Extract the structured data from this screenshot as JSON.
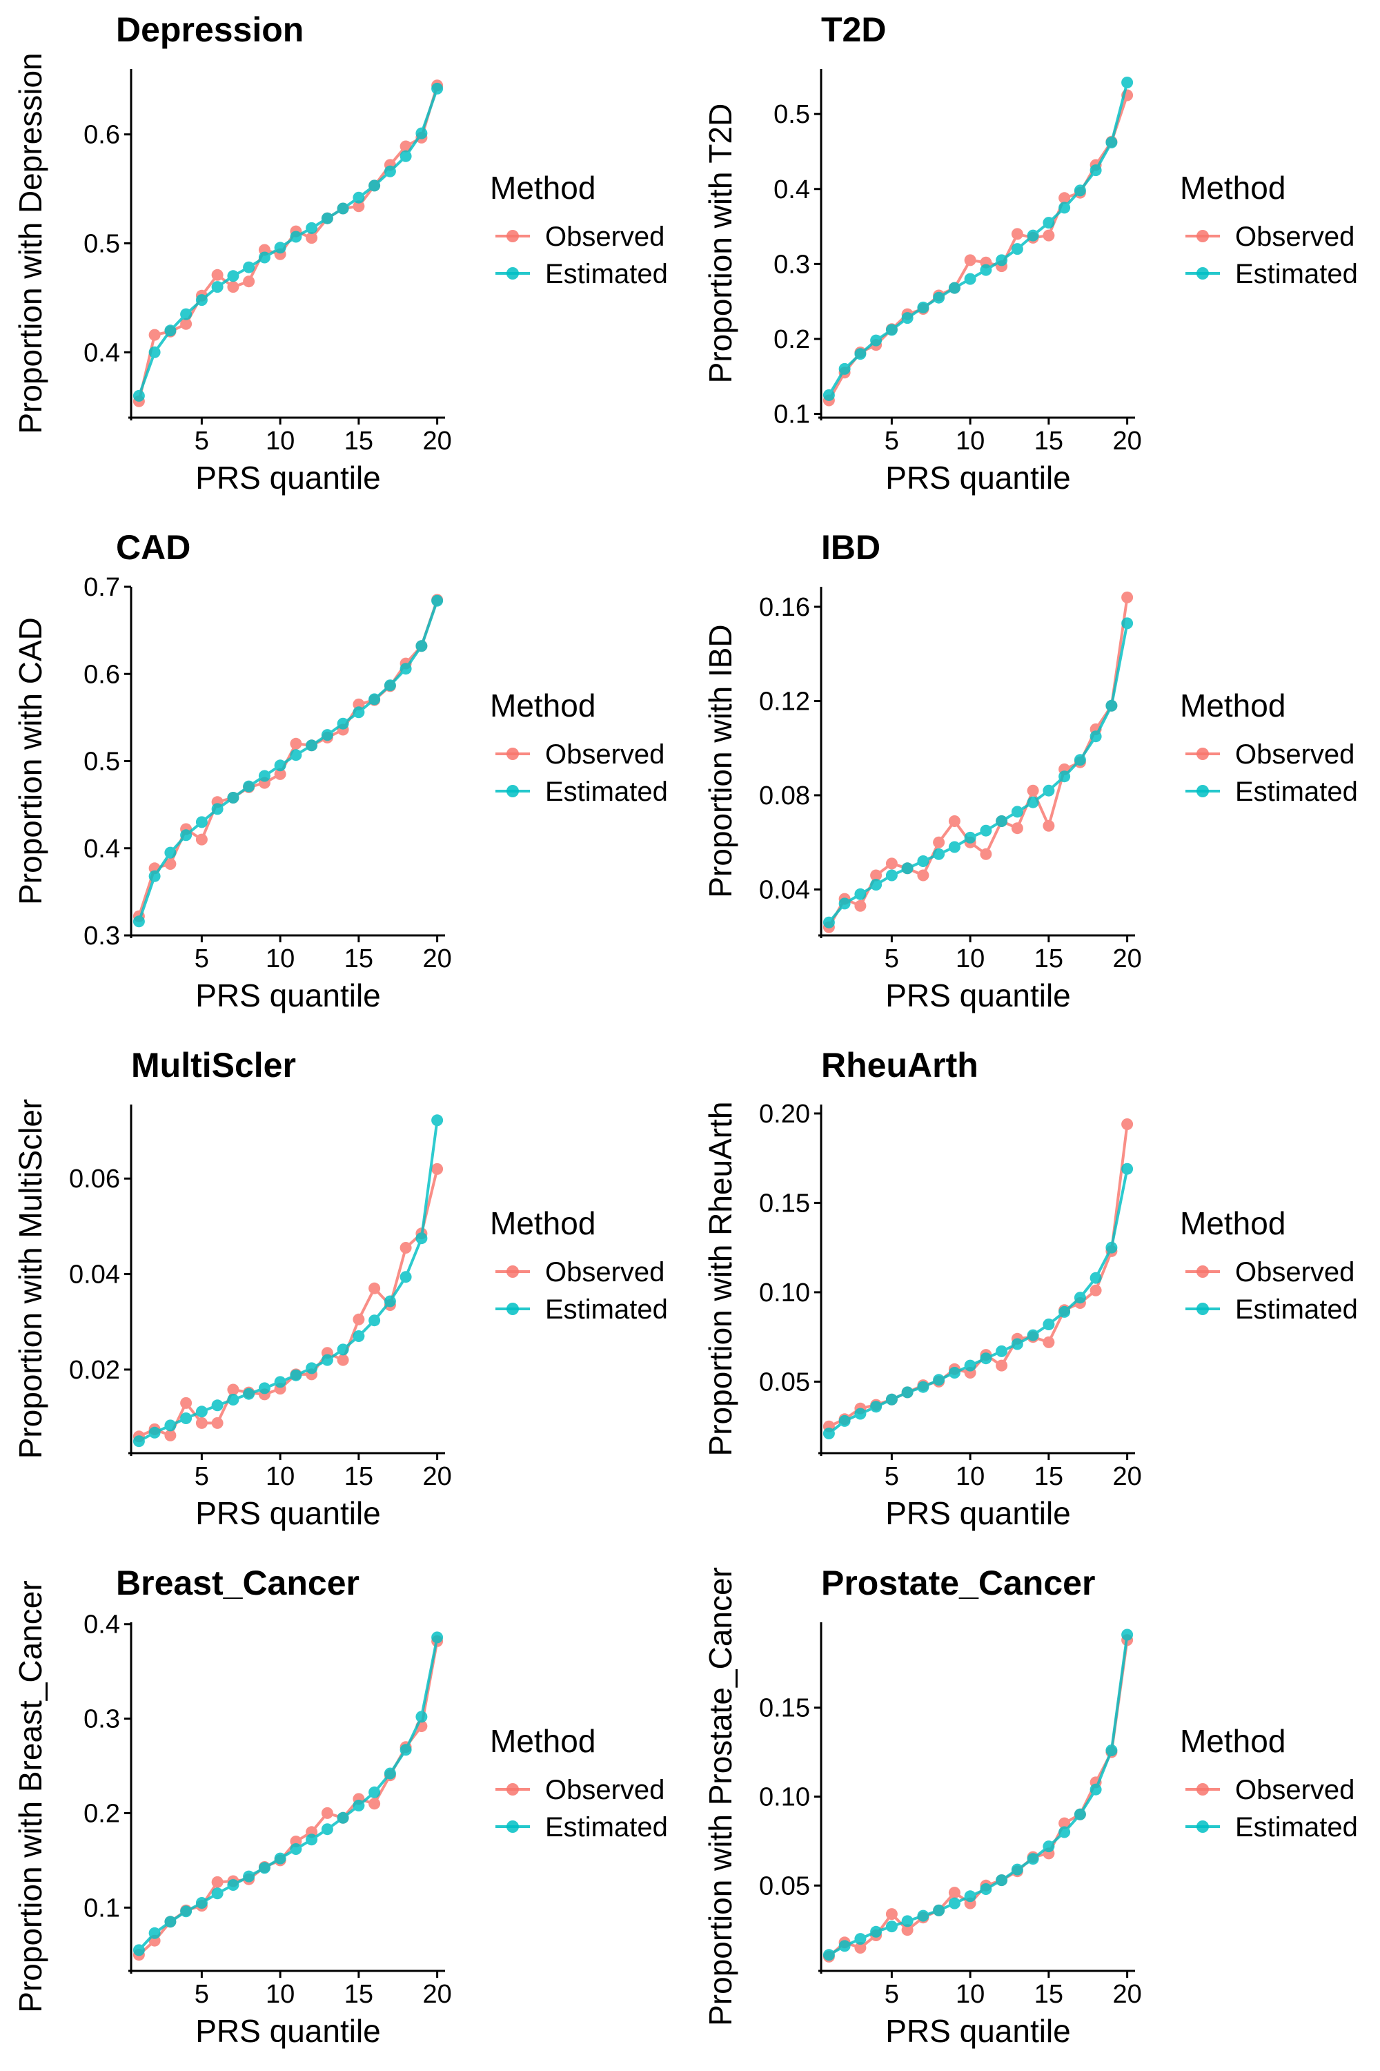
{
  "figure": {
    "legend_title": "Method",
    "series_names": [
      "Observed",
      "Estimated"
    ],
    "colors": {
      "Observed": "#F8766D",
      "Estimated": "#00BFC4"
    },
    "xlabel": "PRS quantile",
    "x_ticks": [
      5,
      10,
      15,
      20
    ]
  },
  "chart_data": [
    {
      "type": "line",
      "title": "Depression",
      "xlabel": "PRS quantile",
      "ylabel": "Proportion with Depression",
      "x": [
        1,
        2,
        3,
        4,
        5,
        6,
        7,
        8,
        9,
        10,
        11,
        12,
        13,
        14,
        15,
        16,
        17,
        18,
        19,
        20
      ],
      "xlim": [
        0.5,
        20.5
      ],
      "ylim": [
        0.34,
        0.66
      ],
      "y_ticks": [
        0.4,
        0.5,
        0.6
      ],
      "y_tick_labels": [
        "0.4",
        "0.5",
        "0.6"
      ],
      "legend": "right",
      "grid": false,
      "series": [
        {
          "name": "Observed",
          "values": [
            0.355,
            0.416,
            0.419,
            0.426,
            0.452,
            0.471,
            0.46,
            0.465,
            0.494,
            0.49,
            0.511,
            0.505,
            0.523,
            0.532,
            0.534,
            0.553,
            0.572,
            0.589,
            0.597,
            0.645
          ]
        },
        {
          "name": "Estimated",
          "values": [
            0.36,
            0.4,
            0.42,
            0.435,
            0.448,
            0.46,
            0.47,
            0.478,
            0.487,
            0.496,
            0.506,
            0.514,
            0.523,
            0.532,
            0.542,
            0.553,
            0.566,
            0.58,
            0.601,
            0.642
          ]
        }
      ]
    },
    {
      "type": "line",
      "title": "T2D",
      "xlabel": "PRS quantile",
      "ylabel": "Proportion with T2D",
      "x": [
        1,
        2,
        3,
        4,
        5,
        6,
        7,
        8,
        9,
        10,
        11,
        12,
        13,
        14,
        15,
        16,
        17,
        18,
        19,
        20
      ],
      "xlim": [
        0.5,
        20.5
      ],
      "ylim": [
        0.095,
        0.56
      ],
      "y_ticks": [
        0.1,
        0.2,
        0.3,
        0.4,
        0.5
      ],
      "y_tick_labels": [
        "0.1",
        "0.2",
        "0.3",
        "0.4",
        "0.5"
      ],
      "legend": "right",
      "grid": false,
      "series": [
        {
          "name": "Observed",
          "values": [
            0.118,
            0.155,
            0.182,
            0.192,
            0.213,
            0.233,
            0.24,
            0.258,
            0.268,
            0.305,
            0.302,
            0.297,
            0.34,
            0.335,
            0.338,
            0.388,
            0.395,
            0.432,
            0.463,
            0.525
          ]
        },
        {
          "name": "Estimated",
          "values": [
            0.125,
            0.16,
            0.18,
            0.198,
            0.212,
            0.228,
            0.242,
            0.255,
            0.268,
            0.28,
            0.292,
            0.305,
            0.32,
            0.338,
            0.355,
            0.375,
            0.398,
            0.425,
            0.462,
            0.542
          ]
        }
      ]
    },
    {
      "type": "line",
      "title": "CAD",
      "xlabel": "PRS quantile",
      "ylabel": "Proportion with CAD",
      "x": [
        1,
        2,
        3,
        4,
        5,
        6,
        7,
        8,
        9,
        10,
        11,
        12,
        13,
        14,
        15,
        16,
        17,
        18,
        19,
        20
      ],
      "xlim": [
        0.5,
        20.5
      ],
      "ylim": [
        0.3,
        0.7
      ],
      "y_ticks": [
        0.3,
        0.4,
        0.5,
        0.6,
        0.7
      ],
      "y_tick_labels": [
        "0.3",
        "0.4",
        "0.5",
        "0.6",
        "0.7"
      ],
      "legend": "right",
      "grid": false,
      "series": [
        {
          "name": "Observed",
          "values": [
            0.322,
            0.377,
            0.382,
            0.422,
            0.41,
            0.453,
            0.458,
            0.47,
            0.475,
            0.485,
            0.52,
            0.518,
            0.527,
            0.536,
            0.565,
            0.57,
            0.586,
            0.612,
            0.632,
            0.685
          ]
        },
        {
          "name": "Estimated",
          "values": [
            0.316,
            0.368,
            0.395,
            0.415,
            0.43,
            0.445,
            0.458,
            0.471,
            0.483,
            0.495,
            0.507,
            0.518,
            0.53,
            0.543,
            0.556,
            0.571,
            0.587,
            0.606,
            0.632,
            0.684
          ]
        }
      ]
    },
    {
      "type": "line",
      "title": "IBD",
      "xlabel": "PRS quantile",
      "ylabel": "Proportion with IBD",
      "x": [
        1,
        2,
        3,
        4,
        5,
        6,
        7,
        8,
        9,
        10,
        11,
        12,
        13,
        14,
        15,
        16,
        17,
        18,
        19,
        20
      ],
      "xlim": [
        0.5,
        20.5
      ],
      "ylim": [
        0.0205,
        0.1685
      ],
      "y_ticks": [
        0.04,
        0.08,
        0.12,
        0.16
      ],
      "y_tick_labels": [
        "0.04",
        "0.08",
        "0.12",
        "0.16"
      ],
      "legend": "right",
      "grid": false,
      "series": [
        {
          "name": "Observed",
          "values": [
            0.024,
            0.036,
            0.033,
            0.046,
            0.051,
            0.049,
            0.046,
            0.06,
            0.069,
            0.06,
            0.055,
            0.069,
            0.066,
            0.082,
            0.067,
            0.091,
            0.094,
            0.108,
            0.118,
            0.164
          ]
        },
        {
          "name": "Estimated",
          "values": [
            0.026,
            0.034,
            0.038,
            0.042,
            0.046,
            0.049,
            0.052,
            0.055,
            0.058,
            0.062,
            0.065,
            0.069,
            0.073,
            0.077,
            0.082,
            0.088,
            0.095,
            0.105,
            0.118,
            0.153
          ]
        }
      ]
    },
    {
      "type": "line",
      "title": "MultiScler",
      "xlabel": "PRS quantile",
      "ylabel": "Proportion with MultiScler",
      "x": [
        1,
        2,
        3,
        4,
        5,
        6,
        7,
        8,
        9,
        10,
        11,
        12,
        13,
        14,
        15,
        16,
        17,
        18,
        19,
        20
      ],
      "xlim": [
        0.5,
        20.5
      ],
      "ylim": [
        0.0025,
        0.0755
      ],
      "y_ticks": [
        0.02,
        0.04,
        0.06
      ],
      "y_tick_labels": [
        "0.02",
        "0.04",
        "0.06"
      ],
      "legend": "right",
      "grid": false,
      "series": [
        {
          "name": "Observed",
          "values": [
            0.006,
            0.0075,
            0.0062,
            0.013,
            0.0088,
            0.0088,
            0.0158,
            0.0152,
            0.0148,
            0.016,
            0.019,
            0.019,
            0.0235,
            0.022,
            0.0305,
            0.037,
            0.0335,
            0.0455,
            0.0485,
            0.062
          ]
        },
        {
          "name": "Estimated",
          "values": [
            0.005,
            0.0068,
            0.0083,
            0.0098,
            0.0112,
            0.0125,
            0.0137,
            0.0149,
            0.0161,
            0.0174,
            0.0188,
            0.0203,
            0.022,
            0.0242,
            0.027,
            0.0303,
            0.0343,
            0.0394,
            0.0475,
            0.0722
          ]
        }
      ]
    },
    {
      "type": "line",
      "title": "RheuArth",
      "xlabel": "PRS quantile",
      "ylabel": "Proportion with RheuArth",
      "x": [
        1,
        2,
        3,
        4,
        5,
        6,
        7,
        8,
        9,
        10,
        11,
        12,
        13,
        14,
        15,
        16,
        17,
        18,
        19,
        20
      ],
      "xlim": [
        0.5,
        20.5
      ],
      "ylim": [
        0.01,
        0.205
      ],
      "y_ticks": [
        0.05,
        0.1,
        0.15,
        0.2
      ],
      "y_tick_labels": [
        "0.05",
        "0.10",
        "0.15",
        "0.20"
      ],
      "legend": "right",
      "grid": false,
      "series": [
        {
          "name": "Observed",
          "values": [
            0.025,
            0.029,
            0.035,
            0.037,
            0.04,
            0.044,
            0.048,
            0.05,
            0.057,
            0.055,
            0.065,
            0.059,
            0.074,
            0.075,
            0.072,
            0.09,
            0.094,
            0.101,
            0.123,
            0.194
          ]
        },
        {
          "name": "Estimated",
          "values": [
            0.021,
            0.028,
            0.032,
            0.036,
            0.04,
            0.044,
            0.047,
            0.051,
            0.055,
            0.059,
            0.063,
            0.067,
            0.071,
            0.076,
            0.082,
            0.089,
            0.097,
            0.108,
            0.125,
            0.169
          ]
        }
      ]
    },
    {
      "type": "line",
      "title": "Breast_Cancer",
      "xlabel": "PRS quantile",
      "ylabel": "Proportion with Breast_Cancer",
      "x": [
        1,
        2,
        3,
        4,
        5,
        6,
        7,
        8,
        9,
        10,
        11,
        12,
        13,
        14,
        15,
        16,
        17,
        18,
        19,
        20
      ],
      "xlim": [
        0.5,
        20.5
      ],
      "ylim": [
        0.033,
        0.402
      ],
      "y_ticks": [
        0.1,
        0.2,
        0.3,
        0.4
      ],
      "y_tick_labels": [
        "0.1",
        "0.2",
        "0.3",
        "0.4"
      ],
      "legend": "right",
      "grid": false,
      "series": [
        {
          "name": "Observed",
          "values": [
            0.05,
            0.065,
            0.085,
            0.097,
            0.102,
            0.127,
            0.128,
            0.13,
            0.143,
            0.15,
            0.17,
            0.18,
            0.2,
            0.195,
            0.215,
            0.21,
            0.24,
            0.27,
            0.292,
            0.382
          ]
        },
        {
          "name": "Estimated",
          "values": [
            0.055,
            0.073,
            0.085,
            0.096,
            0.105,
            0.115,
            0.124,
            0.133,
            0.142,
            0.152,
            0.162,
            0.172,
            0.183,
            0.195,
            0.208,
            0.222,
            0.242,
            0.267,
            0.302,
            0.386
          ]
        }
      ]
    },
    {
      "type": "line",
      "title": "Prostate_Cancer",
      "xlabel": "PRS quantile",
      "ylabel": "Proportion with Prostate_Cancer",
      "x": [
        1,
        2,
        3,
        4,
        5,
        6,
        7,
        8,
        9,
        10,
        11,
        12,
        13,
        14,
        15,
        16,
        17,
        18,
        19,
        20
      ],
      "xlim": [
        0.5,
        20.5
      ],
      "ylim": [
        0.002,
        0.198
      ],
      "y_ticks": [
        0.05,
        0.1,
        0.15
      ],
      "y_tick_labels": [
        "0.05",
        "0.10",
        "0.15"
      ],
      "legend": "right",
      "grid": false,
      "series": [
        {
          "name": "Observed",
          "values": [
            0.01,
            0.018,
            0.015,
            0.022,
            0.034,
            0.025,
            0.032,
            0.036,
            0.046,
            0.04,
            0.05,
            0.053,
            0.058,
            0.066,
            0.068,
            0.085,
            0.09,
            0.108,
            0.125,
            0.188
          ]
        },
        {
          "name": "Estimated",
          "values": [
            0.011,
            0.016,
            0.02,
            0.024,
            0.027,
            0.03,
            0.033,
            0.036,
            0.04,
            0.044,
            0.048,
            0.053,
            0.059,
            0.065,
            0.072,
            0.08,
            0.09,
            0.104,
            0.126,
            0.191
          ]
        }
      ]
    }
  ]
}
